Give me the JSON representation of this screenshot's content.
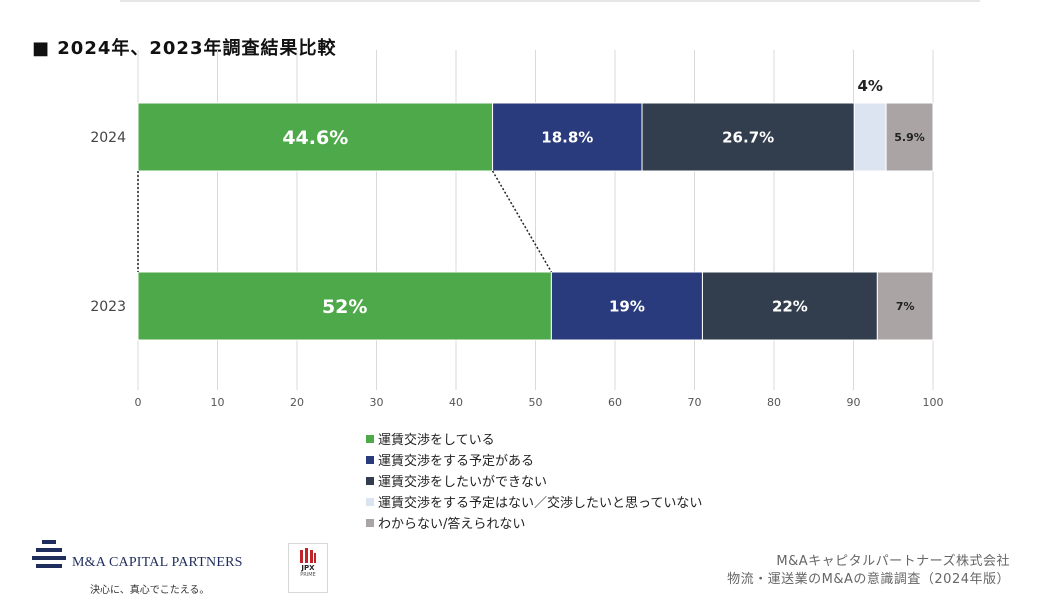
{
  "page": {
    "title": "■ 2024年、2023年調査結果比較",
    "source_line1": "M&Aキャピタルパートナーズ株式会社",
    "source_line2": "物流・運送業のM&Aの意識調査（2024年版）",
    "logo_name": "M&A CAPITAL PARTNERS",
    "logo_tagline": "決心に、真心でこたえる。",
    "jpx_label": "JPX",
    "jpx_sub": "PRIME"
  },
  "chart_data": {
    "type": "bar",
    "orientation": "horizontal",
    "stacked": true,
    "title": "2024年、2023年調査結果比較",
    "categories": [
      "2024",
      "2023"
    ],
    "series": [
      {
        "name": "運賃交渉をしている",
        "values": [
          44.6,
          52
        ],
        "labels": [
          "44.6%",
          "52%"
        ],
        "color": "#4ea94a"
      },
      {
        "name": "運賃交渉をする予定がある",
        "values": [
          18.8,
          19
        ],
        "labels": [
          "18.8%",
          "19%"
        ],
        "color": "#293a7d"
      },
      {
        "name": "運賃交渉をしたいができない",
        "values": [
          26.7,
          22
        ],
        "labels": [
          "26.7%",
          "22%"
        ],
        "color": "#323d4d"
      },
      {
        "name": "運賃交渉をする予定はない／交渉したいと思っていない",
        "values": [
          4,
          0
        ],
        "labels": [
          "4%",
          ""
        ],
        "color": "#dce4f2"
      },
      {
        "name": "わからない/答えられない",
        "values": [
          5.9,
          7
        ],
        "labels": [
          "5.9%",
          "7%"
        ],
        "color": "#aaa5a4"
      }
    ],
    "xlim": [
      0,
      100
    ],
    "xticks": [
      0,
      10,
      20,
      30,
      40,
      50,
      60,
      70,
      80,
      90,
      100
    ],
    "grid": true,
    "legend_position": "bottom",
    "label_colors": {
      "dark": "#ffffff",
      "light": "#222222"
    }
  }
}
